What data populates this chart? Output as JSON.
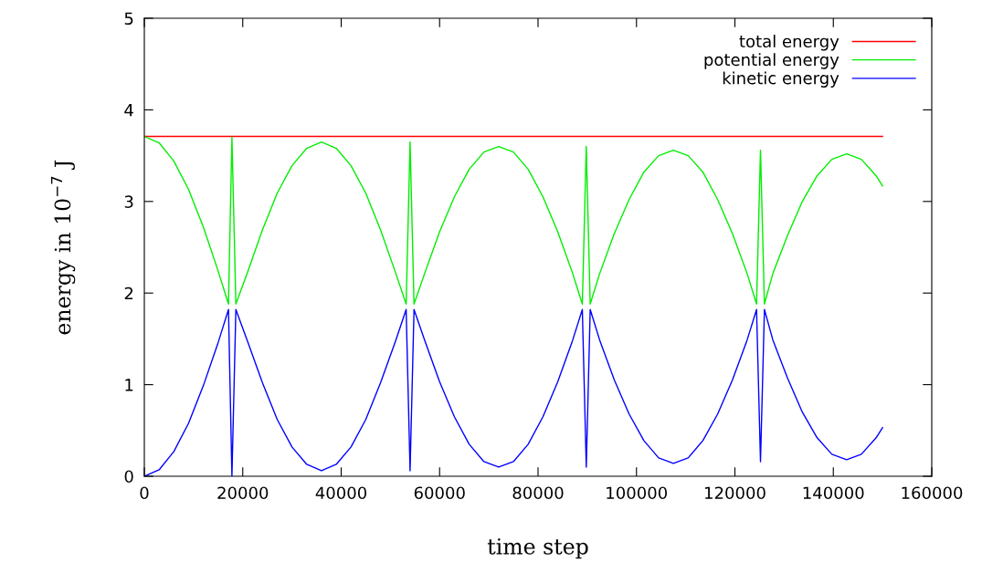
{
  "chart_data": {
    "type": "line",
    "xlabel": "time step",
    "ylabel": "energy in 10$^{−7}$ J",
    "xlim": [
      0,
      160000
    ],
    "xticks": [
      0,
      20000,
      40000,
      60000,
      80000,
      100000,
      120000,
      140000,
      160000
    ],
    "ylim": [
      0,
      5
    ],
    "yticks": [
      0,
      1,
      2,
      3,
      4,
      5
    ],
    "grid": false,
    "legend": "top right",
    "marker": "none",
    "line_style": "solid",
    "x": [
      0,
      3000,
      6000,
      9000,
      12000,
      15000,
      17100,
      17800,
      18600,
      21000,
      24000,
      27000,
      30000,
      33000,
      36000,
      39000,
      42000,
      45000,
      48000,
      51000,
      53200,
      54000,
      54800,
      57000,
      60000,
      63000,
      66000,
      69000,
      72000,
      75000,
      78000,
      81000,
      84000,
      87000,
      89000,
      89800,
      90600,
      92500,
      95500,
      98500,
      101500,
      104500,
      107500,
      110500,
      113500,
      116500,
      119500,
      122500,
      124400,
      125200,
      126000,
      127700,
      130700,
      133700,
      136700,
      139700,
      142700,
      145700,
      148700,
      150000
    ],
    "series": [
      {
        "name": "total energy",
        "color": "#ff0000",
        "x": [
          0,
          150000
        ],
        "values": [
          3.71,
          3.71
        ]
      },
      {
        "name": "potential energy",
        "color": "#00ee00",
        "values": [
          3.71,
          3.64,
          3.44,
          3.13,
          2.72,
          2.24,
          1.88,
          3.7,
          1.88,
          2.23,
          2.69,
          3.09,
          3.39,
          3.58,
          3.65,
          3.58,
          3.39,
          3.09,
          2.69,
          2.23,
          1.88,
          3.65,
          1.88,
          2.22,
          2.67,
          3.05,
          3.35,
          3.54,
          3.6,
          3.54,
          3.35,
          3.05,
          2.67,
          2.22,
          1.88,
          3.6,
          1.88,
          2.21,
          2.65,
          3.02,
          3.32,
          3.5,
          3.56,
          3.5,
          3.32,
          3.02,
          2.65,
          2.21,
          1.88,
          3.56,
          1.88,
          2.21,
          2.63,
          3.0,
          3.28,
          3.46,
          3.52,
          3.46,
          3.28,
          3.17
        ]
      },
      {
        "name": "kinetic energy",
        "color": "#0000ff",
        "values": [
          0,
          0.07,
          0.27,
          0.58,
          0.99,
          1.46,
          1.82,
          0.0,
          1.82,
          1.47,
          1.02,
          0.62,
          0.32,
          0.13,
          0.06,
          0.13,
          0.32,
          0.62,
          1.02,
          1.47,
          1.82,
          0.06,
          1.82,
          1.48,
          1.03,
          0.65,
          0.35,
          0.16,
          0.1,
          0.16,
          0.35,
          0.65,
          1.03,
          1.48,
          1.82,
          0.1,
          1.82,
          1.49,
          1.05,
          0.68,
          0.39,
          0.2,
          0.14,
          0.2,
          0.39,
          0.68,
          1.05,
          1.49,
          1.82,
          0.16,
          1.82,
          1.49,
          1.07,
          0.7,
          0.42,
          0.24,
          0.18,
          0.24,
          0.42,
          0.53
        ]
      }
    ]
  }
}
